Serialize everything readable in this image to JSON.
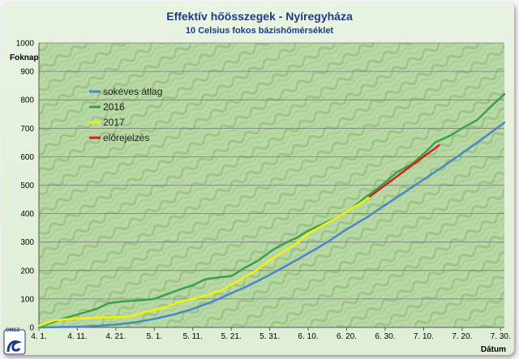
{
  "colors": {
    "sokeves": "#4a86c8",
    "y2016": "#3aa04a",
    "y2017": "#f2f20a",
    "forecast": "#d42020"
  },
  "logo": {
    "text": "OMSZ",
    "icon": "omsz-wave-logo-icon"
  },
  "chart_data": {
    "type": "line",
    "title": "Effektív hőösszegek - Nyíregyháza",
    "subtitle": "10 Celsius fokos bázishőmérséklet",
    "ylabel": "Foknap",
    "xlabel": "Dátum",
    "ylim": [
      0,
      1000
    ],
    "yticks": [
      0,
      100,
      200,
      300,
      400,
      500,
      600,
      700,
      800,
      900,
      1000
    ],
    "xlim": [
      "2017-04-01",
      "2017-07-31"
    ],
    "xticks": [
      {
        "date": "2017-04-01",
        "label": "4. 1."
      },
      {
        "date": "2017-04-11",
        "label": "4. 11."
      },
      {
        "date": "2017-04-21",
        "label": "4. 21."
      },
      {
        "date": "2017-05-01",
        "label": "5. 1."
      },
      {
        "date": "2017-05-11",
        "label": "5. 11."
      },
      {
        "date": "2017-05-21",
        "label": "5. 21."
      },
      {
        "date": "2017-05-31",
        "label": "5. 31."
      },
      {
        "date": "2017-06-10",
        "label": "6. 10."
      },
      {
        "date": "2017-06-20",
        "label": "6. 20."
      },
      {
        "date": "2017-06-30",
        "label": "6. 30."
      },
      {
        "date": "2017-07-10",
        "label": "7. 10."
      },
      {
        "date": "2017-07-20",
        "label": "7. 20."
      },
      {
        "date": "2017-07-30",
        "label": "7. 30."
      }
    ],
    "grid": "horizontal",
    "legend": "upper-left",
    "series": [
      {
        "name": "sokéves átlag",
        "color": "#4a86c8",
        "points": [
          [
            "2017-04-01",
            0
          ],
          [
            "2017-04-11",
            2
          ],
          [
            "2017-04-16",
            5
          ],
          [
            "2017-04-21",
            10
          ],
          [
            "2017-04-26",
            18
          ],
          [
            "2017-05-01",
            30
          ],
          [
            "2017-05-06",
            45
          ],
          [
            "2017-05-11",
            65
          ],
          [
            "2017-05-16",
            90
          ],
          [
            "2017-05-21",
            120
          ],
          [
            "2017-05-26",
            150
          ],
          [
            "2017-05-31",
            185
          ],
          [
            "2017-06-05",
            222
          ],
          [
            "2017-06-10",
            260
          ],
          [
            "2017-06-15",
            300
          ],
          [
            "2017-06-20",
            345
          ],
          [
            "2017-06-25",
            385
          ],
          [
            "2017-06-30",
            430
          ],
          [
            "2017-07-05",
            475
          ],
          [
            "2017-07-10",
            520
          ],
          [
            "2017-07-15",
            565
          ],
          [
            "2017-07-20",
            612
          ],
          [
            "2017-07-25",
            660
          ],
          [
            "2017-07-31",
            720
          ]
        ]
      },
      {
        "name": "2016",
        "color": "#3aa04a",
        "points": [
          [
            "2017-04-01",
            2
          ],
          [
            "2017-04-04",
            15
          ],
          [
            "2017-04-07",
            30
          ],
          [
            "2017-04-11",
            45
          ],
          [
            "2017-04-16",
            65
          ],
          [
            "2017-04-19",
            85
          ],
          [
            "2017-04-23",
            92
          ],
          [
            "2017-04-27",
            95
          ],
          [
            "2017-05-01",
            100
          ],
          [
            "2017-05-04",
            115
          ],
          [
            "2017-05-08",
            135
          ],
          [
            "2017-05-11",
            148
          ],
          [
            "2017-05-14",
            168
          ],
          [
            "2017-05-17",
            175
          ],
          [
            "2017-05-21",
            180
          ],
          [
            "2017-05-24",
            205
          ],
          [
            "2017-05-28",
            235
          ],
          [
            "2017-05-31",
            265
          ],
          [
            "2017-06-03",
            290
          ],
          [
            "2017-06-07",
            315
          ],
          [
            "2017-06-10",
            340
          ],
          [
            "2017-06-14",
            365
          ],
          [
            "2017-06-18",
            390
          ],
          [
            "2017-06-21",
            415
          ],
          [
            "2017-06-24",
            448
          ],
          [
            "2017-06-27",
            478
          ],
          [
            "2017-06-30",
            510
          ],
          [
            "2017-07-03",
            545
          ],
          [
            "2017-07-07",
            575
          ],
          [
            "2017-07-10",
            610
          ],
          [
            "2017-07-13",
            650
          ],
          [
            "2017-07-17",
            675
          ],
          [
            "2017-07-20",
            700
          ],
          [
            "2017-07-24",
            730
          ],
          [
            "2017-07-27",
            770
          ],
          [
            "2017-07-31",
            820
          ]
        ]
      },
      {
        "name": "2017",
        "color": "#f2f20a",
        "points": [
          [
            "2017-04-01",
            5
          ],
          [
            "2017-04-05",
            25
          ],
          [
            "2017-04-09",
            30
          ],
          [
            "2017-04-13",
            32
          ],
          [
            "2017-04-17",
            35
          ],
          [
            "2017-04-21",
            36
          ],
          [
            "2017-04-25",
            38
          ],
          [
            "2017-04-28",
            52
          ],
          [
            "2017-05-01",
            62
          ],
          [
            "2017-05-04",
            70
          ],
          [
            "2017-05-07",
            88
          ],
          [
            "2017-05-11",
            100
          ],
          [
            "2017-05-14",
            110
          ],
          [
            "2017-05-18",
            128
          ],
          [
            "2017-05-21",
            150
          ],
          [
            "2017-05-25",
            180
          ],
          [
            "2017-05-28",
            205
          ],
          [
            "2017-05-31",
            235
          ],
          [
            "2017-06-04",
            270
          ],
          [
            "2017-06-07",
            295
          ],
          [
            "2017-06-10",
            330
          ],
          [
            "2017-06-14",
            360
          ],
          [
            "2017-06-18",
            390
          ],
          [
            "2017-06-21",
            415
          ],
          [
            "2017-06-24",
            440
          ],
          [
            "2017-06-26",
            460
          ]
        ]
      },
      {
        "name": "előrejelzés",
        "color": "#d42020",
        "points": [
          [
            "2017-06-26",
            460
          ],
          [
            "2017-06-29",
            490
          ],
          [
            "2017-07-02",
            520
          ],
          [
            "2017-07-05",
            550
          ],
          [
            "2017-07-08",
            580
          ],
          [
            "2017-07-11",
            610
          ],
          [
            "2017-07-14",
            640
          ]
        ]
      }
    ]
  }
}
